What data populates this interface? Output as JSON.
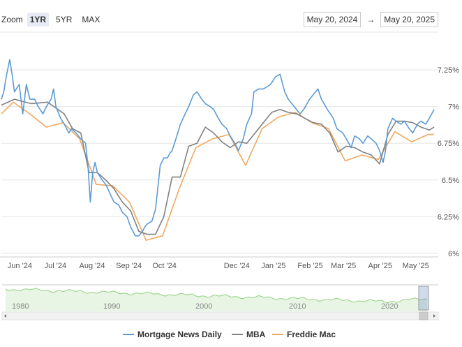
{
  "toolbar": {
    "zoom_label": "Zoom",
    "zoom_options": [
      "1YR",
      "5YR",
      "MAX"
    ],
    "active_zoom": "1YR",
    "range_from": "May 20, 2024",
    "range_arrow": "→",
    "range_to": "May 20, 2025"
  },
  "navigator": {
    "labels": [
      "1980",
      "1990",
      "2000",
      "2010",
      "2020"
    ]
  },
  "chart_data": {
    "type": "line",
    "title": "",
    "xlabel": "",
    "ylabel": "",
    "x_ticks": [
      "Jun '24",
      "Jul '24",
      "Aug '24",
      "Sep '24",
      "Oct '24",
      "Dec '24",
      "Jan '25",
      "Feb '25",
      "Mar '25",
      "Apr '25",
      "May '25"
    ],
    "y_ticks": [
      "6%",
      "6.25%",
      "6.5%",
      "6.75%",
      "7%",
      "7.25%"
    ],
    "ylim": [
      6.0,
      7.25
    ],
    "xlim": [
      "2024-05-20",
      "2025-05-20"
    ],
    "grid": true,
    "legend": "bottom-center",
    "colors": {
      "Mortgage News Daily": "#5b9bd5",
      "MBA": "#808080",
      "Freddie Mac": "#f0a860"
    },
    "series": [
      {
        "name": "Mortgage News Daily",
        "x": [
          "2024-05-20",
          "2024-05-22",
          "2024-05-24",
          "2024-05-27",
          "2024-05-29",
          "2024-05-31",
          "2024-06-04",
          "2024-06-07",
          "2024-06-10",
          "2024-06-13",
          "2024-06-17",
          "2024-06-20",
          "2024-06-24",
          "2024-06-27",
          "2024-07-01",
          "2024-07-03",
          "2024-07-05",
          "2024-07-09",
          "2024-07-12",
          "2024-07-16",
          "2024-07-18",
          "2024-07-22",
          "2024-07-24",
          "2024-07-26",
          "2024-07-30",
          "2024-08-01",
          "2024-08-03",
          "2024-08-05",
          "2024-08-07",
          "2024-08-09",
          "2024-08-13",
          "2024-08-16",
          "2024-08-20",
          "2024-08-23",
          "2024-08-27",
          "2024-08-30",
          "2024-09-03",
          "2024-09-06",
          "2024-09-10",
          "2024-09-13",
          "2024-09-16",
          "2024-09-18",
          "2024-09-20",
          "2024-09-24",
          "2024-09-27",
          "2024-10-01",
          "2024-10-04",
          "2024-10-07",
          "2024-10-09",
          "2024-10-11",
          "2024-10-15",
          "2024-10-18",
          "2024-10-22",
          "2024-10-25",
          "2024-10-29",
          "2024-11-01",
          "2024-11-05",
          "2024-11-08",
          "2024-11-12",
          "2024-11-15",
          "2024-11-19",
          "2024-11-22",
          "2024-11-26",
          "2024-11-29",
          "2024-12-03",
          "2024-12-06",
          "2024-12-10",
          "2024-12-13",
          "2024-12-17",
          "2024-12-19",
          "2024-12-23",
          "2024-12-27",
          "2025-01-02",
          "2025-01-06",
          "2025-01-10",
          "2025-01-14",
          "2025-01-17",
          "2025-01-22",
          "2025-01-27",
          "2025-01-30",
          "2025-02-04",
          "2025-02-07",
          "2025-02-11",
          "2025-02-14",
          "2025-02-19",
          "2025-02-24",
          "2025-02-27",
          "2025-03-04",
          "2025-03-07",
          "2025-03-11",
          "2025-03-14",
          "2025-03-18",
          "2025-03-21",
          "2025-03-25",
          "2025-03-28",
          "2025-04-01",
          "2025-04-04",
          "2025-04-07",
          "2025-04-09",
          "2025-04-11",
          "2025-04-15",
          "2025-04-18",
          "2025-04-22",
          "2025-04-25",
          "2025-04-29",
          "2025-05-02",
          "2025-05-06",
          "2025-05-09",
          "2025-05-13",
          "2025-05-16",
          "2025-05-20"
        ],
        "values": [
          7.05,
          7.1,
          7.2,
          7.32,
          7.22,
          7.1,
          7.15,
          6.95,
          7.15,
          7.05,
          7.05,
          7.0,
          6.95,
          7.0,
          7.05,
          7.12,
          7.0,
          6.92,
          6.88,
          6.82,
          6.85,
          6.82,
          6.8,
          6.78,
          6.75,
          6.6,
          6.35,
          6.55,
          6.62,
          6.55,
          6.5,
          6.47,
          6.4,
          6.35,
          6.33,
          6.28,
          6.25,
          6.18,
          6.12,
          6.12,
          6.15,
          6.18,
          6.2,
          6.22,
          6.3,
          6.6,
          6.65,
          6.65,
          6.68,
          6.7,
          6.8,
          6.88,
          6.95,
          7.0,
          7.08,
          7.1,
          7.05,
          7.02,
          7.0,
          6.98,
          6.92,
          6.88,
          6.85,
          6.8,
          6.75,
          6.7,
          6.78,
          6.88,
          6.95,
          7.1,
          7.12,
          7.12,
          7.15,
          7.2,
          7.22,
          7.1,
          7.05,
          7.0,
          6.95,
          6.98,
          7.05,
          7.08,
          7.12,
          7.05,
          6.98,
          6.92,
          6.85,
          6.82,
          6.78,
          6.72,
          6.8,
          6.78,
          6.75,
          6.8,
          6.78,
          6.75,
          6.7,
          6.62,
          6.7,
          6.85,
          6.92,
          6.9,
          6.88,
          6.9,
          6.85,
          6.82,
          6.88,
          6.9,
          6.88,
          6.92,
          6.98
        ]
      },
      {
        "name": "MBA",
        "x": [
          "2024-05-20",
          "2024-05-31",
          "2024-06-14",
          "2024-06-28",
          "2024-07-12",
          "2024-07-19",
          "2024-07-26",
          "2024-08-02",
          "2024-08-09",
          "2024-08-16",
          "2024-08-23",
          "2024-08-30",
          "2024-09-06",
          "2024-09-13",
          "2024-09-20",
          "2024-09-27",
          "2024-10-04",
          "2024-10-11",
          "2024-10-18",
          "2024-10-25",
          "2024-11-01",
          "2024-11-08",
          "2024-11-15",
          "2024-11-22",
          "2024-11-29",
          "2024-12-06",
          "2024-12-13",
          "2024-12-20",
          "2024-12-27",
          "2025-01-03",
          "2025-01-10",
          "2025-01-17",
          "2025-01-24",
          "2025-01-31",
          "2025-02-07",
          "2025-02-14",
          "2025-02-21",
          "2025-02-28",
          "2025-03-07",
          "2025-03-14",
          "2025-03-21",
          "2025-03-28",
          "2025-04-04",
          "2025-04-11",
          "2025-04-18",
          "2025-04-25",
          "2025-05-02",
          "2025-05-09",
          "2025-05-16",
          "2025-05-20"
        ],
        "values": [
          7.01,
          7.05,
          7.02,
          7.03,
          6.95,
          6.85,
          6.82,
          6.55,
          6.55,
          6.5,
          6.44,
          6.35,
          6.29,
          6.15,
          6.13,
          6.13,
          6.25,
          6.52,
          6.52,
          6.73,
          6.75,
          6.86,
          6.82,
          6.76,
          6.72,
          6.76,
          6.75,
          6.82,
          6.89,
          6.96,
          6.98,
          6.96,
          6.95,
          6.92,
          6.89,
          6.88,
          6.82,
          6.69,
          6.73,
          6.72,
          6.69,
          6.67,
          6.61,
          6.81,
          6.9,
          6.9,
          6.89,
          6.86,
          6.84,
          6.86
        ]
      },
      {
        "name": "Freddie Mac",
        "x": [
          "2024-05-20",
          "2024-05-30",
          "2024-06-13",
          "2024-06-27",
          "2024-07-11",
          "2024-07-25",
          "2024-08-08",
          "2024-08-22",
          "2024-09-05",
          "2024-09-19",
          "2024-10-03",
          "2024-10-17",
          "2024-10-31",
          "2024-11-14",
          "2024-11-28",
          "2024-12-12",
          "2024-12-26",
          "2025-01-09",
          "2025-01-23",
          "2025-02-06",
          "2025-02-20",
          "2025-03-06",
          "2025-03-20",
          "2025-04-03",
          "2025-04-17",
          "2025-05-01",
          "2025-05-15",
          "2025-05-20"
        ],
        "values": [
          6.95,
          7.03,
          6.95,
          6.86,
          6.89,
          6.78,
          6.47,
          6.46,
          6.35,
          6.09,
          6.12,
          6.44,
          6.72,
          6.78,
          6.81,
          6.6,
          6.85,
          6.93,
          6.96,
          6.89,
          6.85,
          6.63,
          6.67,
          6.64,
          6.83,
          6.76,
          6.81,
          6.81
        ]
      }
    ],
    "navigator_series_note": ""
  }
}
